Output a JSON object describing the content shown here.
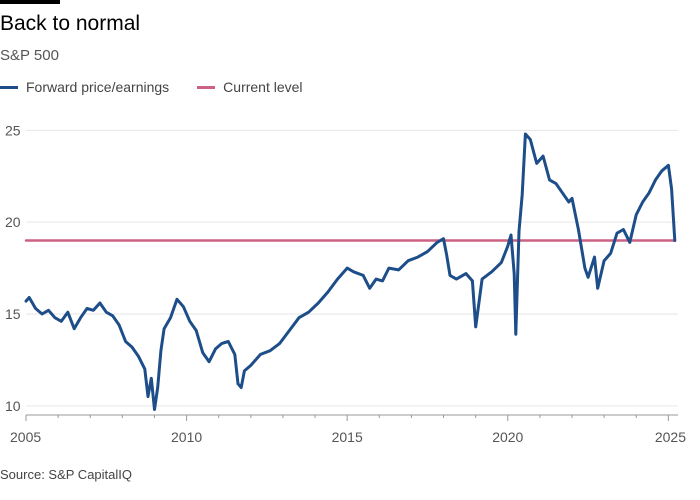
{
  "header": {
    "title": "Back to normal",
    "subtitle": "S&P 500"
  },
  "footer": {
    "source": "Source: S&P CapitalIQ"
  },
  "chart_data": {
    "type": "line",
    "title": "Back to normal",
    "subtitle": "S&P 500",
    "xlabel": "",
    "ylabel": "",
    "xlim": [
      2005,
      2025.3
    ],
    "ylim": [
      9.5,
      26
    ],
    "xticks": [
      2005,
      2010,
      2015,
      2020,
      2025
    ],
    "yticks": [
      10,
      15,
      20,
      25
    ],
    "grid": true,
    "legend_position": "top-left",
    "series": [
      {
        "name": "Forward price/earnings",
        "color": "#1d4e89",
        "x": [
          2005.0,
          2005.1,
          2005.3,
          2005.5,
          2005.7,
          2005.9,
          2006.1,
          2006.3,
          2006.5,
          2006.7,
          2006.9,
          2007.1,
          2007.3,
          2007.5,
          2007.7,
          2007.9,
          2008.1,
          2008.3,
          2008.5,
          2008.7,
          2008.8,
          2008.9,
          2009.0,
          2009.1,
          2009.2,
          2009.3,
          2009.5,
          2009.7,
          2009.9,
          2010.1,
          2010.3,
          2010.5,
          2010.7,
          2010.9,
          2011.1,
          2011.3,
          2011.5,
          2011.6,
          2011.7,
          2011.8,
          2012.0,
          2012.3,
          2012.6,
          2012.9,
          2013.2,
          2013.5,
          2013.8,
          2014.1,
          2014.4,
          2014.7,
          2015.0,
          2015.2,
          2015.5,
          2015.7,
          2015.9,
          2016.1,
          2016.3,
          2016.6,
          2016.9,
          2017.2,
          2017.5,
          2017.8,
          2018.0,
          2018.1,
          2018.2,
          2018.4,
          2018.7,
          2018.9,
          2019.0,
          2019.2,
          2019.5,
          2019.8,
          2020.0,
          2020.1,
          2020.2,
          2020.25,
          2020.35,
          2020.45,
          2020.55,
          2020.7,
          2020.9,
          2021.1,
          2021.3,
          2021.5,
          2021.7,
          2021.9,
          2022.0,
          2022.2,
          2022.4,
          2022.5,
          2022.7,
          2022.8,
          2023.0,
          2023.2,
          2023.4,
          2023.6,
          2023.8,
          2024.0,
          2024.2,
          2024.4,
          2024.6,
          2024.8,
          2025.0,
          2025.1,
          2025.2
        ],
        "y": [
          15.7,
          15.9,
          15.3,
          15.0,
          15.2,
          14.8,
          14.6,
          15.1,
          14.2,
          14.8,
          15.3,
          15.2,
          15.6,
          15.1,
          14.9,
          14.4,
          13.5,
          13.2,
          12.7,
          12.0,
          10.5,
          11.5,
          9.8,
          11.0,
          13.0,
          14.2,
          14.8,
          15.8,
          15.4,
          14.6,
          14.1,
          12.9,
          12.4,
          13.1,
          13.4,
          13.5,
          12.8,
          11.2,
          11.0,
          11.9,
          12.2,
          12.8,
          13.0,
          13.4,
          14.1,
          14.8,
          15.1,
          15.6,
          16.2,
          16.9,
          17.5,
          17.3,
          17.1,
          16.4,
          16.9,
          16.8,
          17.5,
          17.4,
          17.9,
          18.1,
          18.4,
          18.9,
          19.1,
          18.2,
          17.1,
          16.9,
          17.2,
          16.8,
          14.3,
          16.9,
          17.3,
          17.8,
          18.7,
          19.3,
          17.2,
          13.9,
          19.5,
          21.5,
          24.8,
          24.5,
          23.2,
          23.6,
          22.3,
          22.1,
          21.6,
          21.1,
          21.3,
          19.6,
          17.5,
          17.0,
          18.1,
          16.4,
          17.9,
          18.3,
          19.4,
          19.6,
          18.9,
          20.4,
          21.1,
          21.6,
          22.3,
          22.8,
          23.1,
          21.8,
          19.0
        ]
      },
      {
        "name": "Current level",
        "color": "#cc6182",
        "x": [
          2005.0,
          2025.2
        ],
        "y": [
          19.0,
          19.0
        ]
      }
    ]
  }
}
